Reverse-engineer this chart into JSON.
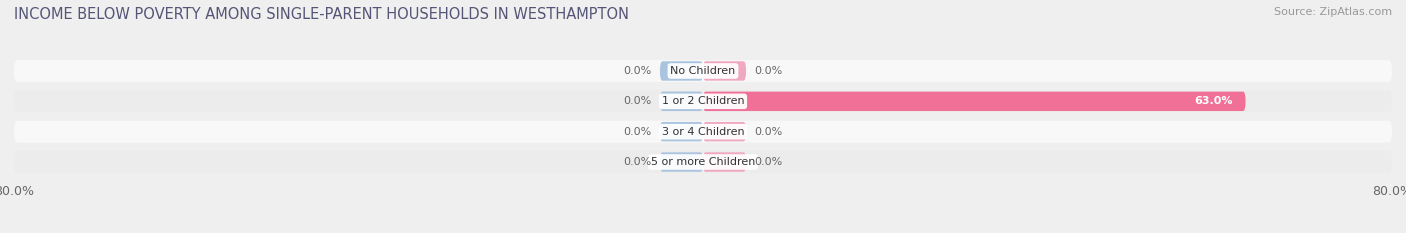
{
  "title": "INCOME BELOW POVERTY AMONG SINGLE-PARENT HOUSEHOLDS IN WESTHAMPTON",
  "source": "Source: ZipAtlas.com",
  "categories": [
    "No Children",
    "1 or 2 Children",
    "3 or 4 Children",
    "5 or more Children"
  ],
  "single_father": [
    0.0,
    0.0,
    0.0,
    0.0
  ],
  "single_mother": [
    0.0,
    63.0,
    0.0,
    0.0
  ],
  "father_color": "#aac4df",
  "mother_color": "#f07098",
  "mother_color_light": "#f0a8c0",
  "bar_height": 0.72,
  "xlim": [
    -80,
    80
  ],
  "x_ticks_left": -80.0,
  "x_ticks_right": 80.0,
  "title_fontsize": 10.5,
  "source_fontsize": 8,
  "label_fontsize": 8,
  "category_fontsize": 8,
  "tick_fontsize": 9,
  "title_color": "#555577",
  "source_color": "#999999",
  "label_color": "#666666",
  "background_color": "#efefef",
  "row_bg_colors": [
    "#f8f8f8",
    "#ececec",
    "#f8f8f8",
    "#ececec"
  ],
  "min_bar_display": 5.0,
  "zero_bar_display": 5.0
}
